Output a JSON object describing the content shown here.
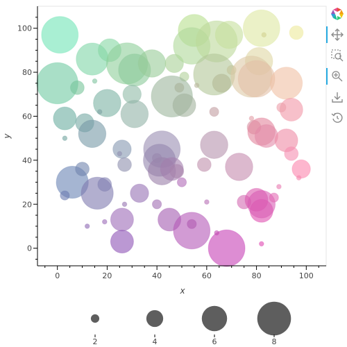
{
  "chart_data": {
    "type": "scatter",
    "title": "",
    "xlabel": "x",
    "ylabel": "y",
    "xlim": [
      -8,
      108
    ],
    "ylim": [
      -8,
      110
    ],
    "x_ticks": [
      0,
      20,
      40,
      60,
      80,
      100
    ],
    "y_ticks": [
      0,
      20,
      40,
      60,
      80,
      100
    ],
    "grid": false,
    "size_legend": {
      "placement": "bottom",
      "values": [
        2,
        4,
        6,
        8
      ],
      "labels": [
        "2",
        "4",
        "6",
        "8"
      ]
    },
    "points": [
      {
        "x": 1,
        "y": 97,
        "s": 8,
        "c": "#6fe4b5"
      },
      {
        "x": 14,
        "y": 86,
        "s": 7,
        "c": "#7fd6a6"
      },
      {
        "x": 21,
        "y": 90,
        "s": 5,
        "c": "#86d7a4"
      },
      {
        "x": 28,
        "y": 84,
        "s": 9,
        "c": "#8ecf99"
      },
      {
        "x": 31,
        "y": 81,
        "s": 7,
        "c": "#8bc99a"
      },
      {
        "x": 38,
        "y": 84,
        "s": 6,
        "c": "#97cc98"
      },
      {
        "x": 47,
        "y": 84,
        "s": 4,
        "c": "#a8d096"
      },
      {
        "x": 51,
        "y": 78,
        "s": 2,
        "c": "#b1d099"
      },
      {
        "x": 55,
        "y": 99,
        "s": 7,
        "c": "#b7e08e"
      },
      {
        "x": 54,
        "y": 92,
        "s": 8,
        "c": "#afd89a"
      },
      {
        "x": 64,
        "y": 94,
        "s": 9,
        "c": "#bcd99a"
      },
      {
        "x": 69,
        "y": 97,
        "s": 6,
        "c": "#c7df9c"
      },
      {
        "x": 63,
        "y": 79,
        "s": 9,
        "c": "#b3c698"
      },
      {
        "x": 66,
        "y": 75,
        "s": 4,
        "c": "#b3b995"
      },
      {
        "x": 70,
        "y": 81,
        "s": 2,
        "c": "#c3c49a"
      },
      {
        "x": 82,
        "y": 100,
        "s": 8,
        "c": "#dde7a1"
      },
      {
        "x": 83,
        "y": 97,
        "s": 1,
        "c": "#d2d290"
      },
      {
        "x": 96,
        "y": 98,
        "s": 3,
        "c": "#ede99a"
      },
      {
        "x": 81,
        "y": 85,
        "s": 6,
        "c": "#dfd7a4"
      },
      {
        "x": 78,
        "y": 78,
        "s": 9,
        "c": "#ddc9a6"
      },
      {
        "x": 80,
        "y": 77,
        "s": 8,
        "c": "#e3c0a6"
      },
      {
        "x": 92,
        "y": 75,
        "s": 7,
        "c": "#f0bfa3"
      },
      {
        "x": 0,
        "y": 75,
        "s": 9,
        "c": "#6fcaa2"
      },
      {
        "x": 8,
        "y": 73,
        "s": 3,
        "c": "#77c49a"
      },
      {
        "x": 15,
        "y": 76,
        "s": 1,
        "c": "#7fc39f"
      },
      {
        "x": 20,
        "y": 66,
        "s": 6,
        "c": "#7bb3a3"
      },
      {
        "x": 30,
        "y": 70,
        "s": 4,
        "c": "#8fbba7"
      },
      {
        "x": 31,
        "y": 61,
        "s": 6,
        "c": "#91b3a7"
      },
      {
        "x": 46,
        "y": 69,
        "s": 9,
        "c": "#9cb69d"
      },
      {
        "x": 51,
        "y": 65,
        "s": 5,
        "c": "#a2b39d"
      },
      {
        "x": 49,
        "y": 73,
        "s": 2,
        "c": "#a8b29a"
      },
      {
        "x": 63,
        "y": 62,
        "s": 2,
        "c": "#c29ca0"
      },
      {
        "x": 3,
        "y": 59,
        "s": 5,
        "c": "#6aaea0"
      },
      {
        "x": 11,
        "y": 57,
        "s": 4,
        "c": "#74a9a3"
      },
      {
        "x": 14,
        "y": 52,
        "s": 6,
        "c": "#7799a6"
      },
      {
        "x": 17,
        "y": 62,
        "s": 1,
        "c": "#7fa2a3"
      },
      {
        "x": 3,
        "y": 50,
        "s": 1,
        "c": "#6fa39e"
      },
      {
        "x": 26,
        "y": 45,
        "s": 4,
        "c": "#8597b1"
      },
      {
        "x": 27,
        "y": 38,
        "s": 3,
        "c": "#8e8fae"
      },
      {
        "x": 25,
        "y": 43,
        "s": 1,
        "c": "#8f8fb0"
      },
      {
        "x": 42,
        "y": 45,
        "s": 8,
        "c": "#9a8db2"
      },
      {
        "x": 41,
        "y": 40,
        "s": 7,
        "c": "#9385ad"
      },
      {
        "x": 42,
        "y": 35,
        "s": 6,
        "c": "#9a7fa8"
      },
      {
        "x": 46,
        "y": 36,
        "s": 5,
        "c": "#a47fae"
      },
      {
        "x": 48,
        "y": 35,
        "s": 3,
        "c": "#a883ab"
      },
      {
        "x": 40,
        "y": 41,
        "s": 2,
        "c": "#9987ae"
      },
      {
        "x": 63,
        "y": 47,
        "s": 6,
        "c": "#b692ad"
      },
      {
        "x": 59,
        "y": 38,
        "s": 3,
        "c": "#bf8fab"
      },
      {
        "x": 73,
        "y": 37,
        "s": 6,
        "c": "#c48aae"
      },
      {
        "x": 79,
        "y": 55,
        "s": 3,
        "c": "#d991a4"
      },
      {
        "x": 82,
        "y": 53,
        "s": 6,
        "c": "#e2869d"
      },
      {
        "x": 84,
        "y": 51,
        "s": 5,
        "c": "#e38ba8"
      },
      {
        "x": 92,
        "y": 49,
        "s": 5,
        "c": "#ee8ba5"
      },
      {
        "x": 94,
        "y": 63,
        "s": 5,
        "c": "#f196a6"
      },
      {
        "x": 90,
        "y": 64,
        "s": 2,
        "c": "#ec9eaa"
      },
      {
        "x": 78,
        "y": 59,
        "s": 1,
        "c": "#e29ea6"
      },
      {
        "x": 94,
        "y": 43,
        "s": 3,
        "c": "#f58eb1"
      },
      {
        "x": 98,
        "y": 36,
        "s": 4,
        "c": "#fb86ad"
      },
      {
        "x": 97,
        "y": 32,
        "s": 1,
        "c": "#f587ae"
      },
      {
        "x": 6,
        "y": 30,
        "s": 7,
        "c": "#6983b4"
      },
      {
        "x": 10,
        "y": 36,
        "s": 3,
        "c": "#6f84ad"
      },
      {
        "x": 3,
        "y": 24,
        "s": 2,
        "c": "#6a7bb0"
      },
      {
        "x": 16,
        "y": 25,
        "s": 7,
        "c": "#7e7aaf"
      },
      {
        "x": 19,
        "y": 29,
        "s": 3,
        "c": "#8281b3"
      },
      {
        "x": 33,
        "y": 25,
        "s": 4,
        "c": "#9671b4"
      },
      {
        "x": 27,
        "y": 20,
        "s": 1,
        "c": "#9673b1"
      },
      {
        "x": 40,
        "y": 20,
        "s": 2,
        "c": "#a06cb2"
      },
      {
        "x": 26,
        "y": 13,
        "s": 5,
        "c": "#9c6ab8"
      },
      {
        "x": 19,
        "y": 12,
        "s": 1,
        "c": "#9b6ab8"
      },
      {
        "x": 26,
        "y": 3,
        "s": 5,
        "c": "#8e53b5"
      },
      {
        "x": 45,
        "y": 13,
        "s": 5,
        "c": "#a45cb0"
      },
      {
        "x": 54,
        "y": 8,
        "s": 8,
        "c": "#b458b8"
      },
      {
        "x": 54,
        "y": 11,
        "s": 2,
        "c": "#b05ab1"
      },
      {
        "x": 50,
        "y": 30,
        "s": 2,
        "c": "#b06ab8"
      },
      {
        "x": 60,
        "y": 21,
        "s": 1,
        "c": "#b870b6"
      },
      {
        "x": 68,
        "y": 0,
        "s": 8,
        "c": "#c741b6"
      },
      {
        "x": 64,
        "y": 7,
        "s": 1,
        "c": "#c24ab1"
      },
      {
        "x": 75,
        "y": 21,
        "s": 3,
        "c": "#d36ab2"
      },
      {
        "x": 80,
        "y": 22,
        "s": 5,
        "c": "#db58ae"
      },
      {
        "x": 82,
        "y": 17,
        "s": 5,
        "c": "#e050b0"
      },
      {
        "x": 82,
        "y": 20,
        "s": 6,
        "c": "#d85db4"
      },
      {
        "x": 87,
        "y": 23,
        "s": 2,
        "c": "#e26ab4"
      },
      {
        "x": 82,
        "y": 2,
        "s": 1,
        "c": "#df4ab2"
      },
      {
        "x": 89,
        "y": 28,
        "s": 1,
        "c": "#e979b1"
      },
      {
        "x": 12,
        "y": 10,
        "s": 1,
        "c": "#8e69b4"
      },
      {
        "x": 56,
        "y": 74,
        "s": 1,
        "c": "#b7b59b"
      }
    ]
  },
  "toolbar": {
    "tools": [
      "bokeh-logo-icon",
      "pan-icon",
      "box-zoom-icon",
      "wheel-zoom-icon",
      "save-icon",
      "reset-icon"
    ]
  }
}
